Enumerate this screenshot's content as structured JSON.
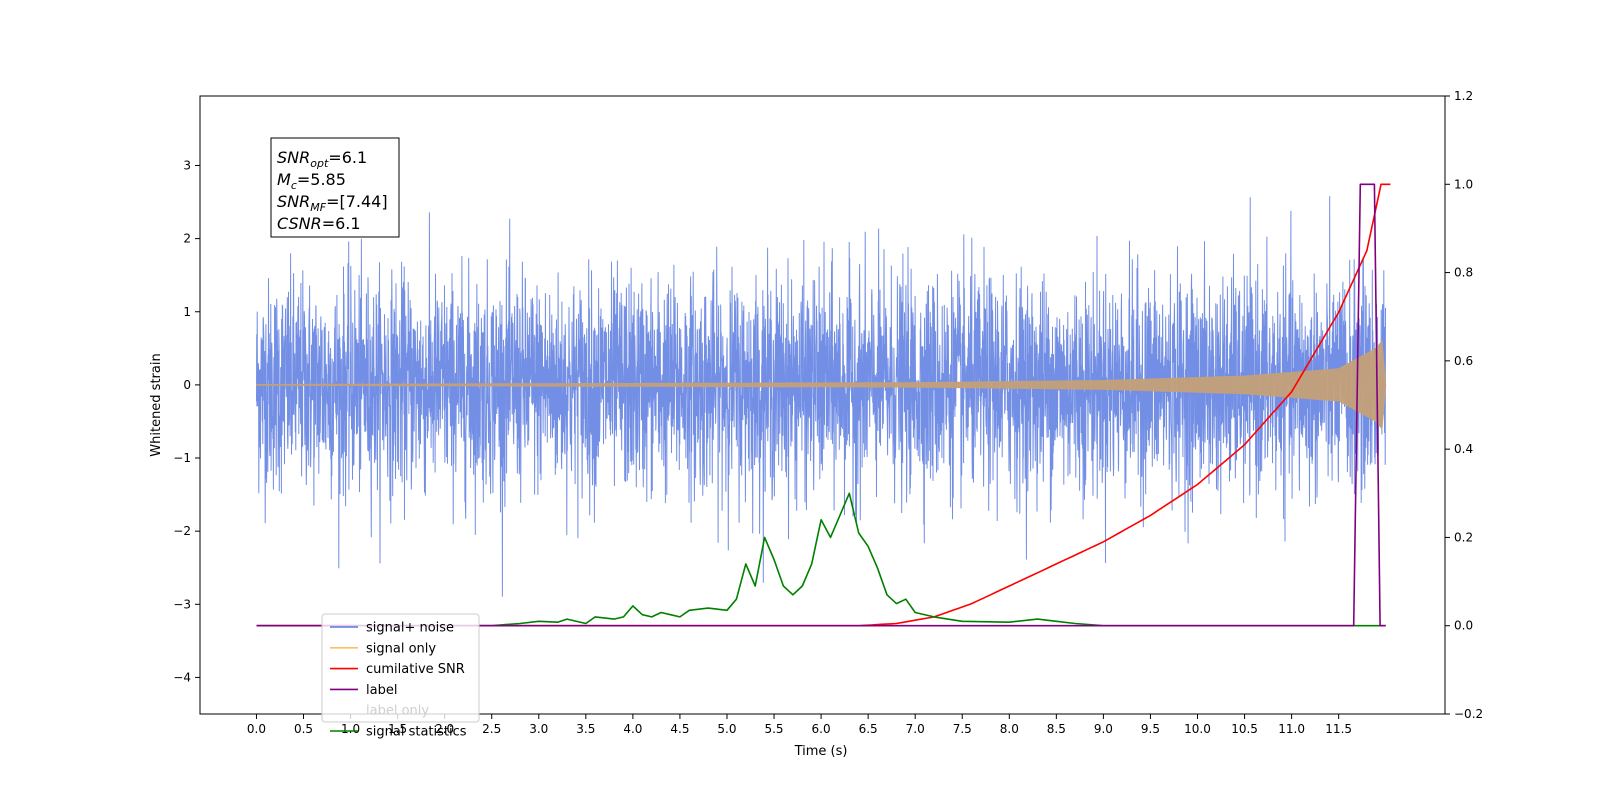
{
  "chart_data": {
    "type": "line",
    "xlabel": "Time (s)",
    "ylabel": "Whitened strain",
    "xlim": [
      -0.6,
      12.63
    ],
    "ylim": [
      -4.5,
      3.95
    ],
    "y2lim": [
      -0.2,
      1.2
    ],
    "x_ticks": [
      "0.0",
      "0.5",
      "1.0",
      "1.5",
      "2.0",
      "2.5",
      "3.0",
      "3.5",
      "4.0",
      "4.5",
      "5.0",
      "5.5",
      "6.0",
      "6.5",
      "7.0",
      "7.5",
      "8.0",
      "8.5",
      "9.0",
      "9.5",
      "10.0",
      "10.5",
      "11.0",
      "11.5"
    ],
    "y_ticks": [
      "3",
      "2",
      "1",
      "0",
      "−1",
      "−2",
      "−3",
      "−4"
    ],
    "y2_ticks": [
      "1.2",
      "1.0",
      "0.8",
      "0.6",
      "0.4",
      "0.2",
      "0.0",
      "−0.2"
    ],
    "annotation": {
      "lines": [
        {
          "label_main": "SNR",
          "label_sub": "opt",
          "value": "=6.1"
        },
        {
          "label_main": "M",
          "label_sub": "c",
          "value": "=5.85"
        },
        {
          "label_main": "SNR",
          "label_sub": "MF",
          "value": "=[7.44]"
        },
        {
          "label_main": "CSNR",
          "label_sub": "",
          "value": "=6.1"
        }
      ]
    },
    "legend": {
      "placement": "lower-left",
      "entries": [
        {
          "label": "signal+ noise",
          "color": "#5a7be0"
        },
        {
          "label": "signal only",
          "color": "#ffbf60"
        },
        {
          "label": "cumilative SNR",
          "color": "#ff0000"
        },
        {
          "label": "label",
          "color": "#800080"
        },
        {
          "label": "label only",
          "color": "#d0d0d0"
        },
        {
          "label": "signal statistics",
          "color": "#008000"
        }
      ]
    },
    "series": [
      {
        "name": "signal+ noise",
        "color": "#5a7be0",
        "x_range": [
          0.0,
          12.0
        ],
        "noise_sigma": 0.72
      },
      {
        "name": "signal only",
        "color": "#c4a078",
        "amp": [
          [
            0,
            0.005
          ],
          [
            7,
            0.03
          ],
          [
            9,
            0.06
          ],
          [
            10.5,
            0.12
          ],
          [
            11.5,
            0.22
          ],
          [
            11.9,
            0.5
          ],
          [
            11.96,
            0.6
          ],
          [
            12.0,
            0.0
          ]
        ]
      },
      {
        "name": "cumilative SNR",
        "color": "#ff0000",
        "x": [
          0,
          6.4,
          6.8,
          7.2,
          7.6,
          8.0,
          8.5,
          9.0,
          9.5,
          10.0,
          10.5,
          11.0,
          11.5,
          11.8,
          11.95,
          12.0,
          12.05
        ],
        "y": [
          0,
          0,
          0.005,
          0.02,
          0.05,
          0.09,
          0.14,
          0.19,
          0.25,
          0.32,
          0.41,
          0.53,
          0.71,
          0.85,
          1.0,
          1.0,
          1.0
        ]
      },
      {
        "name": "label",
        "color": "#800080",
        "x": [
          0,
          11.66,
          11.73,
          11.88,
          11.94,
          12.0
        ],
        "y": [
          0,
          0,
          1.0,
          1.0,
          0,
          0
        ]
      },
      {
        "name": "signal statistics",
        "color": "#008000",
        "x": [
          0,
          2.5,
          2.8,
          3.0,
          3.2,
          3.3,
          3.5,
          3.6,
          3.8,
          3.9,
          4.0,
          4.1,
          4.2,
          4.3,
          4.4,
          4.5,
          4.6,
          4.8,
          5.0,
          5.1,
          5.2,
          5.3,
          5.4,
          5.5,
          5.6,
          5.7,
          5.8,
          5.9,
          6.0,
          6.1,
          6.2,
          6.3,
          6.4,
          6.5,
          6.6,
          6.7,
          6.8,
          6.9,
          7.0,
          7.2,
          7.5,
          8.0,
          8.3,
          8.5,
          8.7,
          9.0,
          12.0
        ],
        "y": [
          0,
          0,
          0.005,
          0.01,
          0.008,
          0.015,
          0.005,
          0.02,
          0.015,
          0.02,
          0.045,
          0.025,
          0.02,
          0.03,
          0.025,
          0.02,
          0.035,
          0.04,
          0.035,
          0.06,
          0.14,
          0.09,
          0.2,
          0.15,
          0.09,
          0.07,
          0.09,
          0.14,
          0.24,
          0.2,
          0.25,
          0.3,
          0.21,
          0.18,
          0.13,
          0.07,
          0.05,
          0.06,
          0.03,
          0.02,
          0.01,
          0.008,
          0.015,
          0.01,
          0.005,
          0,
          0
        ]
      }
    ]
  }
}
